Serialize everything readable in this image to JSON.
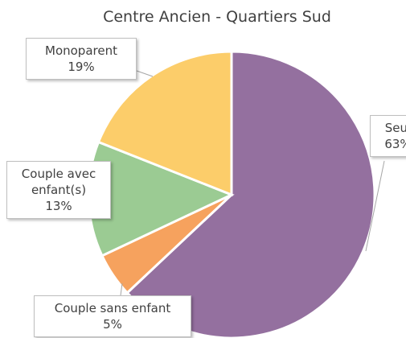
{
  "chart_data": {
    "type": "pie",
    "title": "Centre Ancien - Quartiers Sud",
    "categories": [
      "Seul",
      "Couple sans enfant",
      "Couple avec enfant(s)",
      "Monoparent"
    ],
    "values": [
      63,
      5,
      13,
      19
    ],
    "value_labels": [
      "63%",
      "5%",
      "13%",
      "19%"
    ],
    "colors": [
      "#94709f",
      "#f6a25e",
      "#9bcb93",
      "#fccd6a"
    ]
  }
}
